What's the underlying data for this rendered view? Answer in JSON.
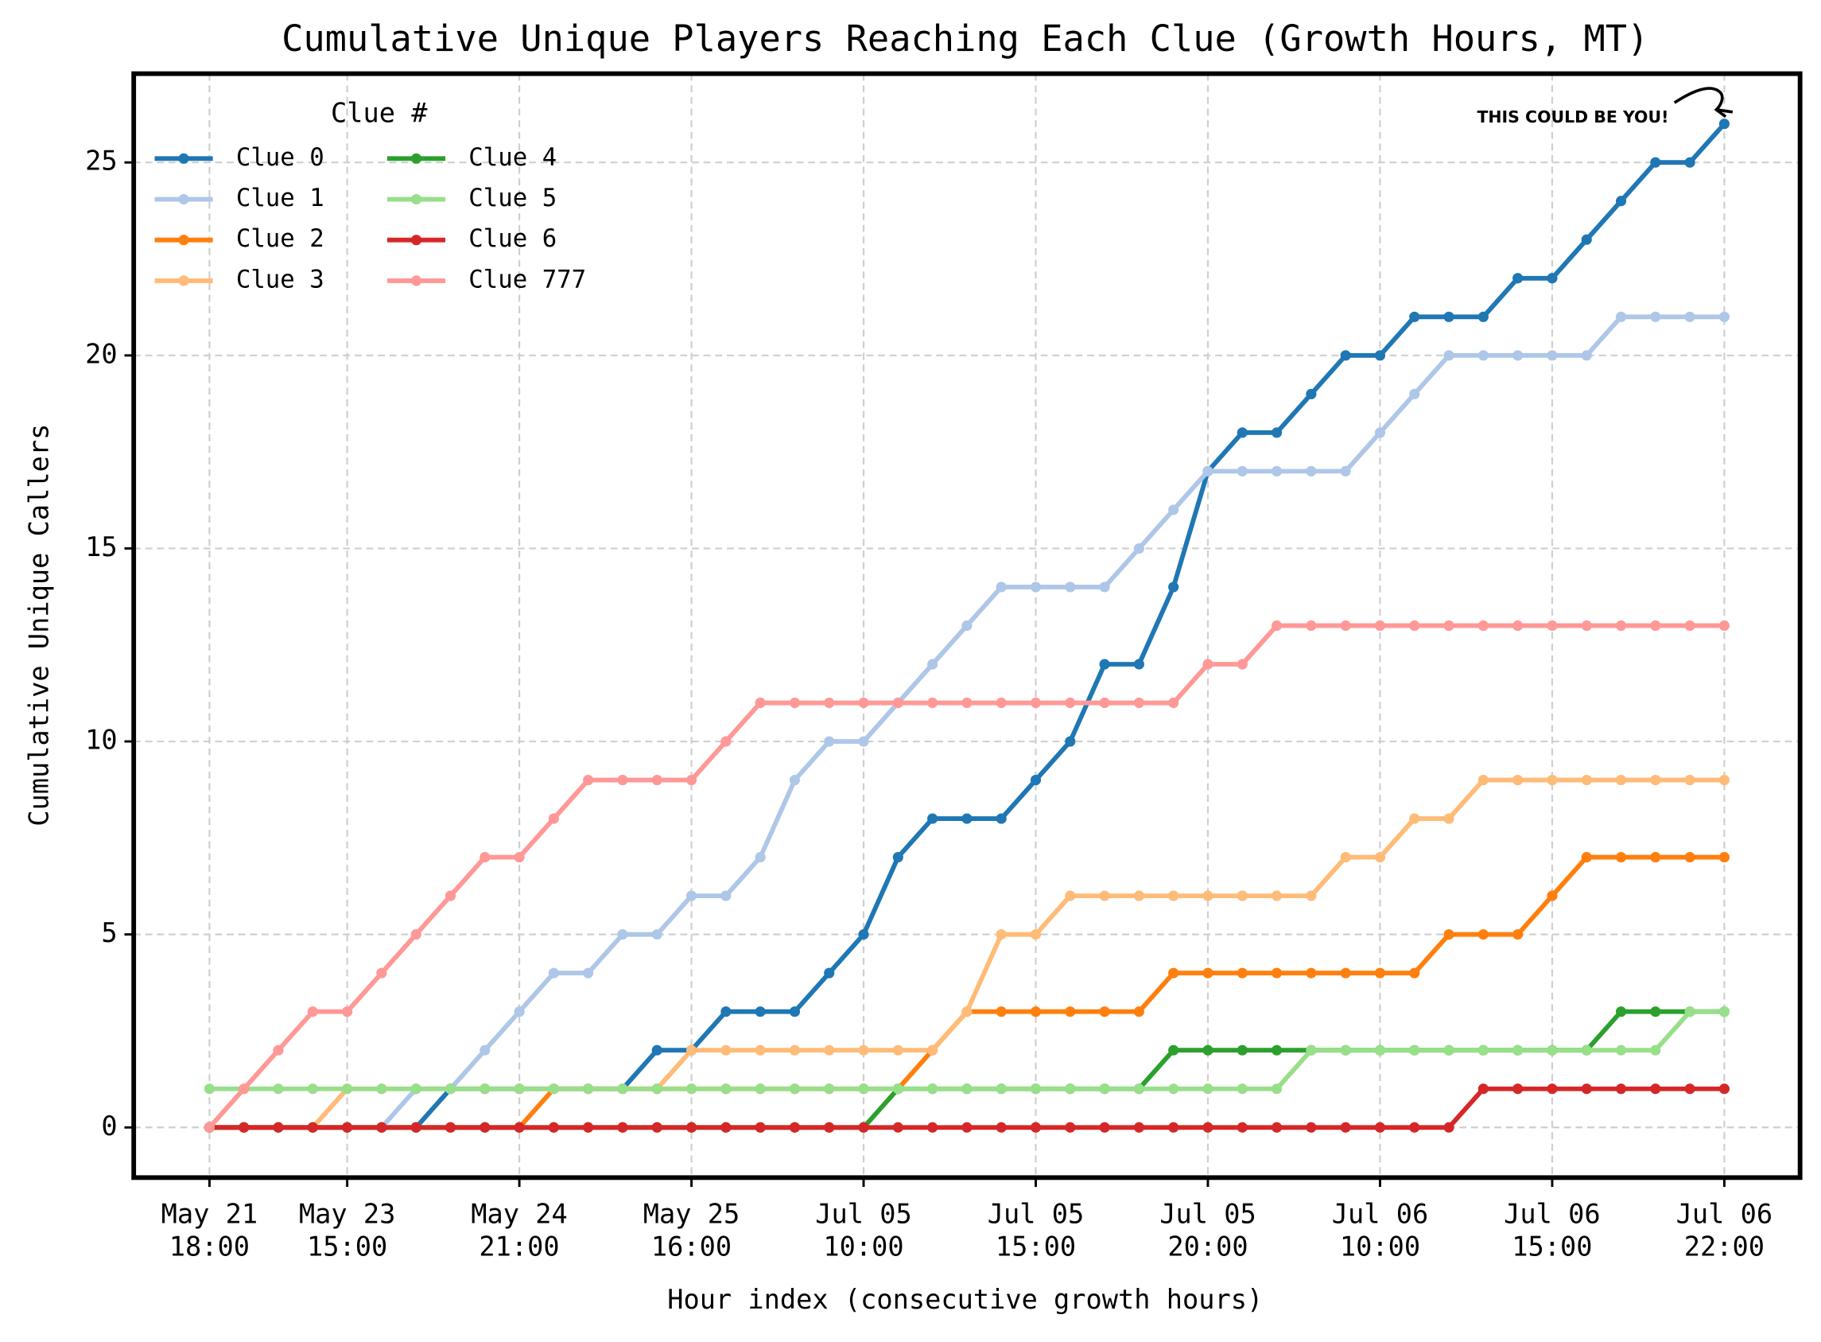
{
  "chart_data": {
    "type": "line",
    "title": "Cumulative Unique Players Reaching Each Clue (Growth Hours, MT)",
    "x_label": "Hour index (consecutive growth hours)",
    "y_label": "Cumulative Unique Callers",
    "legend_title": "Clue #",
    "legend_position": "upper left",
    "legend_columns": 2,
    "grid": true,
    "annotation": "THIS COULD BE YOU!",
    "x": [
      0,
      1,
      2,
      3,
      4,
      5,
      6,
      7,
      8,
      9,
      10,
      11,
      12,
      13,
      14,
      15,
      16,
      17,
      18,
      19,
      20,
      21,
      22,
      23,
      24,
      25,
      26,
      27,
      28,
      29,
      30,
      31,
      32,
      33,
      34,
      35,
      36,
      37,
      38,
      39,
      40,
      41,
      42,
      43,
      44
    ],
    "xlim": [
      -2.2,
      46.2
    ],
    "ylim": [
      -1.3,
      27.3
    ],
    "xticks": [
      {
        "value": 0,
        "label": "May 21\n18:00"
      },
      {
        "value": 4,
        "label": "May 23\n15:00"
      },
      {
        "value": 9,
        "label": "May 24\n21:00"
      },
      {
        "value": 14,
        "label": "May 25\n16:00"
      },
      {
        "value": 19,
        "label": "Jul 05\n10:00"
      },
      {
        "value": 24,
        "label": "Jul 05\n15:00"
      },
      {
        "value": 29,
        "label": "Jul 05\n20:00"
      },
      {
        "value": 34,
        "label": "Jul 06\n10:00"
      },
      {
        "value": 39,
        "label": "Jul 06\n15:00"
      },
      {
        "value": 44,
        "label": "Jul 06\n22:00"
      }
    ],
    "yticks": [
      0,
      5,
      10,
      15,
      20,
      25
    ],
    "series": [
      {
        "name": "Clue 0",
        "color": "#1f77b4",
        "values": [
          0,
          0,
          0,
          0,
          0,
          0,
          0,
          1,
          1,
          1,
          1,
          1,
          1,
          2,
          2,
          3,
          3,
          3,
          4,
          5,
          7,
          8,
          8,
          8,
          9,
          10,
          12,
          12,
          14,
          17,
          18,
          18,
          19,
          20,
          20,
          21,
          21,
          21,
          22,
          22,
          23,
          24,
          25,
          25,
          26
        ]
      },
      {
        "name": "Clue 1",
        "color": "#aec7e8",
        "values": [
          0,
          0,
          0,
          0,
          0,
          0,
          1,
          1,
          2,
          3,
          4,
          4,
          5,
          5,
          6,
          6,
          7,
          9,
          10,
          10,
          11,
          12,
          13,
          14,
          14,
          14,
          14,
          15,
          16,
          17,
          17,
          17,
          17,
          17,
          18,
          19,
          20,
          20,
          20,
          20,
          20,
          21,
          21,
          21,
          21
        ]
      },
      {
        "name": "Clue 2",
        "color": "#ff7f0e",
        "values": [
          0,
          0,
          0,
          0,
          0,
          0,
          0,
          0,
          0,
          0,
          1,
          1,
          1,
          1,
          1,
          1,
          1,
          1,
          1,
          1,
          1,
          2,
          3,
          3,
          3,
          3,
          3,
          3,
          4,
          4,
          4,
          4,
          4,
          4,
          4,
          4,
          5,
          5,
          5,
          6,
          7,
          7,
          7,
          7,
          7
        ]
      },
      {
        "name": "Clue 3",
        "color": "#ffbb78",
        "values": [
          0,
          0,
          0,
          0,
          1,
          1,
          1,
          1,
          1,
          1,
          1,
          1,
          1,
          1,
          2,
          2,
          2,
          2,
          2,
          2,
          2,
          2,
          3,
          5,
          5,
          6,
          6,
          6,
          6,
          6,
          6,
          6,
          6,
          7,
          7,
          8,
          8,
          9,
          9,
          9,
          9,
          9,
          9,
          9,
          9
        ]
      },
      {
        "name": "Clue 4",
        "color": "#2ca02c",
        "values": [
          0,
          0,
          0,
          0,
          0,
          0,
          0,
          0,
          0,
          0,
          0,
          0,
          0,
          0,
          0,
          0,
          0,
          0,
          0,
          0,
          1,
          1,
          1,
          1,
          1,
          1,
          1,
          1,
          2,
          2,
          2,
          2,
          2,
          2,
          2,
          2,
          2,
          2,
          2,
          2,
          2,
          3,
          3,
          3,
          3
        ]
      },
      {
        "name": "Clue 5",
        "color": "#98df8a",
        "values": [
          1,
          1,
          1,
          1,
          1,
          1,
          1,
          1,
          1,
          1,
          1,
          1,
          1,
          1,
          1,
          1,
          1,
          1,
          1,
          1,
          1,
          1,
          1,
          1,
          1,
          1,
          1,
          1,
          1,
          1,
          1,
          1,
          2,
          2,
          2,
          2,
          2,
          2,
          2,
          2,
          2,
          2,
          2,
          3,
          3
        ]
      },
      {
        "name": "Clue 6",
        "color": "#d62728",
        "values": [
          0,
          0,
          0,
          0,
          0,
          0,
          0,
          0,
          0,
          0,
          0,
          0,
          0,
          0,
          0,
          0,
          0,
          0,
          0,
          0,
          0,
          0,
          0,
          0,
          0,
          0,
          0,
          0,
          0,
          0,
          0,
          0,
          0,
          0,
          0,
          0,
          0,
          1,
          1,
          1,
          1,
          1,
          1,
          1,
          1
        ]
      },
      {
        "name": "Clue 777",
        "color": "#ff9896",
        "values": [
          0,
          1,
          2,
          3,
          3,
          4,
          5,
          6,
          7,
          7,
          8,
          9,
          9,
          9,
          9,
          10,
          11,
          11,
          11,
          11,
          11,
          11,
          11,
          11,
          11,
          11,
          11,
          11,
          11,
          12,
          12,
          13,
          13,
          13,
          13,
          13,
          13,
          13,
          13,
          13,
          13,
          13,
          13,
          13,
          13
        ]
      }
    ]
  }
}
